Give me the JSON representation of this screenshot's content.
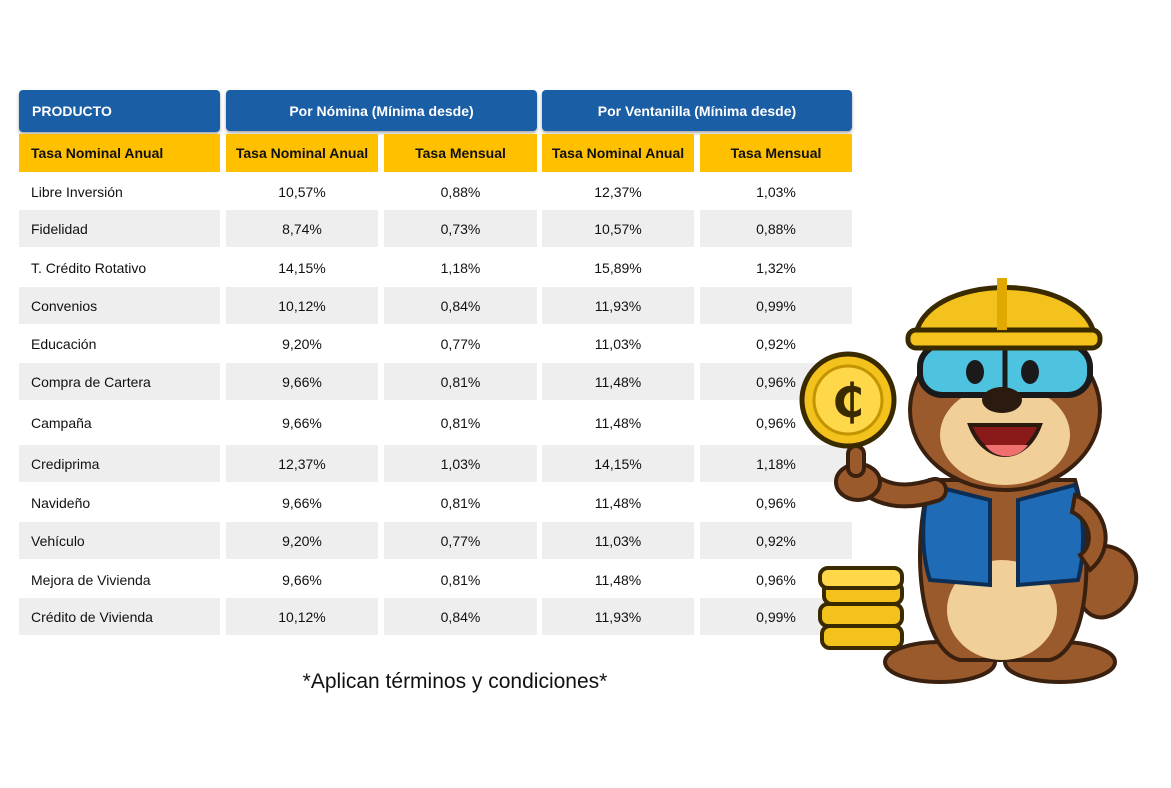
{
  "header": {
    "product": "PRODUCTO",
    "nomina": "Por Nómina (Mínima desde)",
    "ventanilla": "Por Ventanilla (Mínima desde)"
  },
  "subheader": {
    "c0": "Tasa Nominal Anual",
    "c1": "Tasa Nominal Anual",
    "c2": "Tasa Mensual",
    "c3": "Tasa Nominal Anual",
    "c4": "Tasa Mensual"
  },
  "rows": [
    {
      "product": "Libre Inversión",
      "nom_anual": "10,57%",
      "nom_mensual": "0,88%",
      "ven_anual": "12,37%",
      "ven_mensual": "1,03%"
    },
    {
      "product": "Fidelidad",
      "nom_anual": "8,74%",
      "nom_mensual": "0,73%",
      "ven_anual": "10,57%",
      "ven_mensual": "0,88%"
    },
    {
      "product": "T. Crédito Rotativo",
      "nom_anual": "14,15%",
      "nom_mensual": "1,18%",
      "ven_anual": "15,89%",
      "ven_mensual": "1,32%"
    },
    {
      "product": "Convenios",
      "nom_anual": "10,12%",
      "nom_mensual": "0,84%",
      "ven_anual": "11,93%",
      "ven_mensual": "0,99%"
    },
    {
      "product": "Educación",
      "nom_anual": "9,20%",
      "nom_mensual": "0,77%",
      "ven_anual": "11,03%",
      "ven_mensual": "0,92%"
    },
    {
      "product": "Compra de Cartera",
      "nom_anual": "9,66%",
      "nom_mensual": "0,81%",
      "ven_anual": "11,48%",
      "ven_mensual": "0,96%"
    },
    {
      "product": "Campaña",
      "nom_anual": "9,66%",
      "nom_mensual": "0,81%",
      "ven_anual": "11,48%",
      "ven_mensual": "0,96%"
    },
    {
      "product": "Crediprima",
      "nom_anual": "12,37%",
      "nom_mensual": "1,03%",
      "ven_anual": "14,15%",
      "ven_mensual": "1,18%"
    },
    {
      "product": "Navideño",
      "nom_anual": "9,66%",
      "nom_mensual": "0,81%",
      "ven_anual": "11,48%",
      "ven_mensual": "0,96%"
    },
    {
      "product": "Vehículo",
      "nom_anual": "9,20%",
      "nom_mensual": "0,77%",
      "ven_anual": "11,03%",
      "ven_mensual": "0,92%"
    },
    {
      "product": "Mejora de Vivienda",
      "nom_anual": "9,66%",
      "nom_mensual": "0,81%",
      "ven_anual": "11,48%",
      "ven_mensual": "0,96%"
    },
    {
      "product": "Crédito de Vivienda",
      "nom_anual": "10,12%",
      "nom_mensual": "0,84%",
      "ven_anual": "11,93%",
      "ven_mensual": "0,99%"
    }
  ],
  "footnote": "*Aplican términos y condiciones*",
  "mascot": {
    "icon": "otter-mascot-icon",
    "coin_icon": "coin-icon"
  },
  "colors": {
    "header_blue": "#1a5ea6",
    "subheader_yellow": "#ffc000",
    "row_shade": "#eeeeee"
  }
}
